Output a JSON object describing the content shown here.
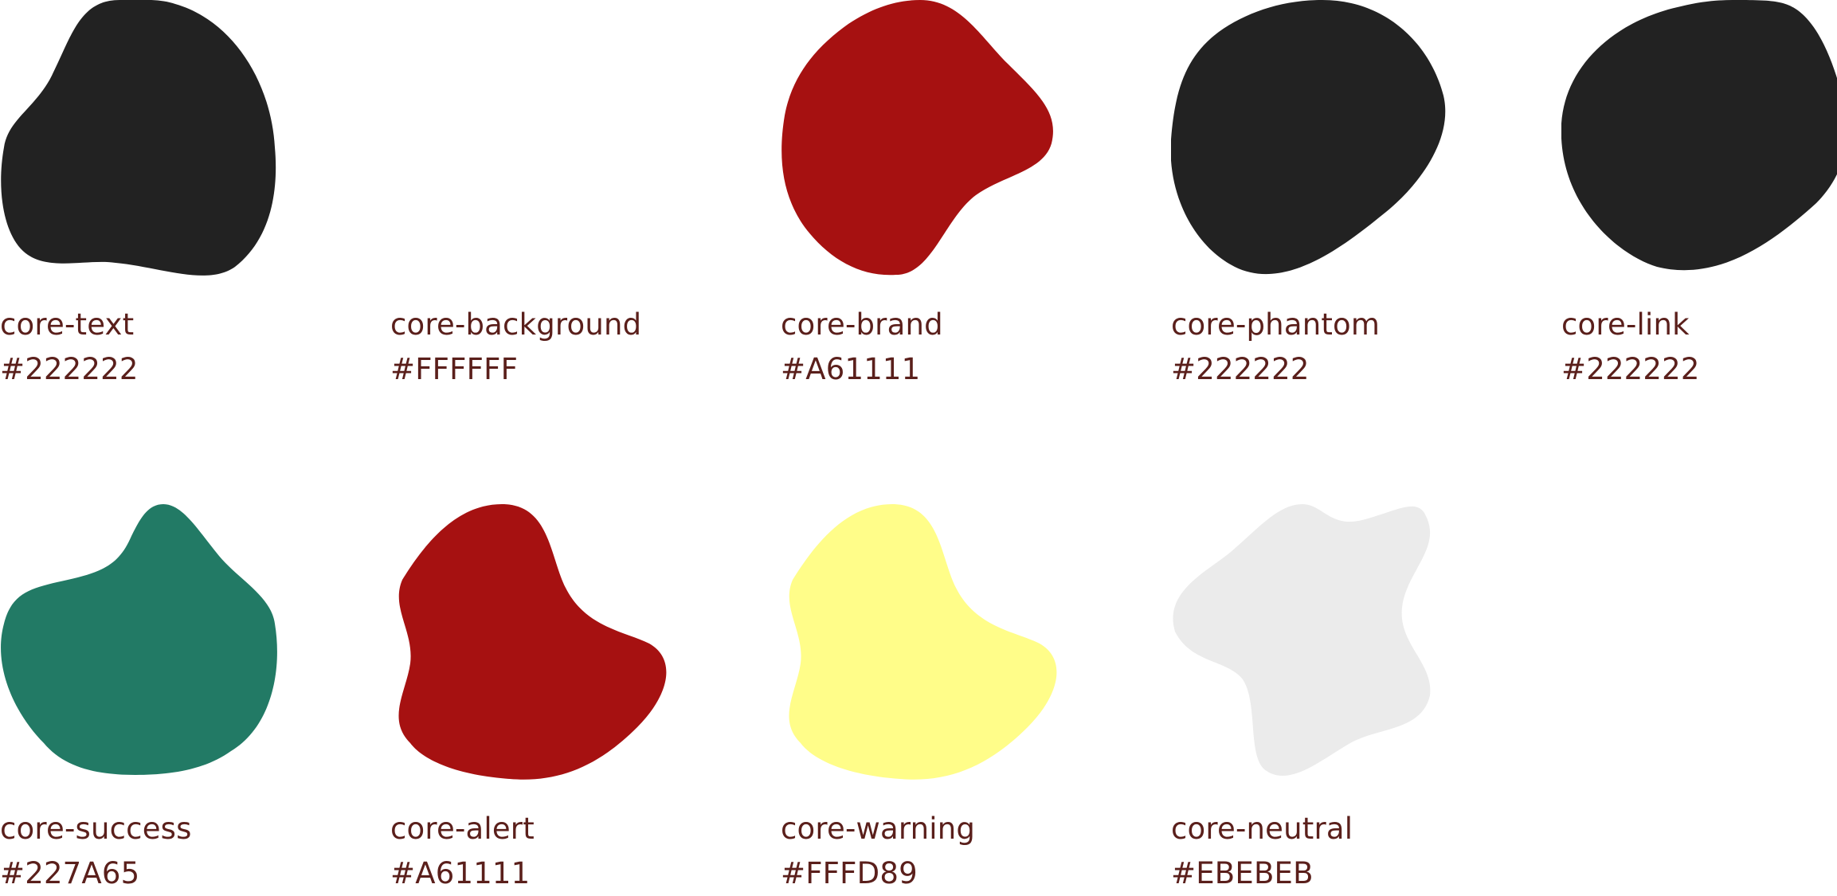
{
  "swatches": [
    {
      "name": "core-text",
      "hex": "#222222",
      "color": "#222222"
    },
    {
      "name": "core-background",
      "hex": "#FFFFFF",
      "color": "#FFFFFF"
    },
    {
      "name": "core-brand",
      "hex": "#A61111",
      "color": "#A61111"
    },
    {
      "name": "core-phantom",
      "hex": "#222222",
      "color": "#222222"
    },
    {
      "name": "core-link",
      "hex": "#222222",
      "color": "#222222"
    },
    {
      "name": "core-success",
      "hex": "#227A65",
      "color": "#227A65"
    },
    {
      "name": "core-alert",
      "hex": "#A61111",
      "color": "#A61111"
    },
    {
      "name": "core-warning",
      "hex": "#FFFD89",
      "color": "#FFFD89"
    },
    {
      "name": "core-neutral",
      "hex": "#EBEBEB",
      "color": "#EBEBEB"
    }
  ],
  "label_color": "#5A1F1B"
}
